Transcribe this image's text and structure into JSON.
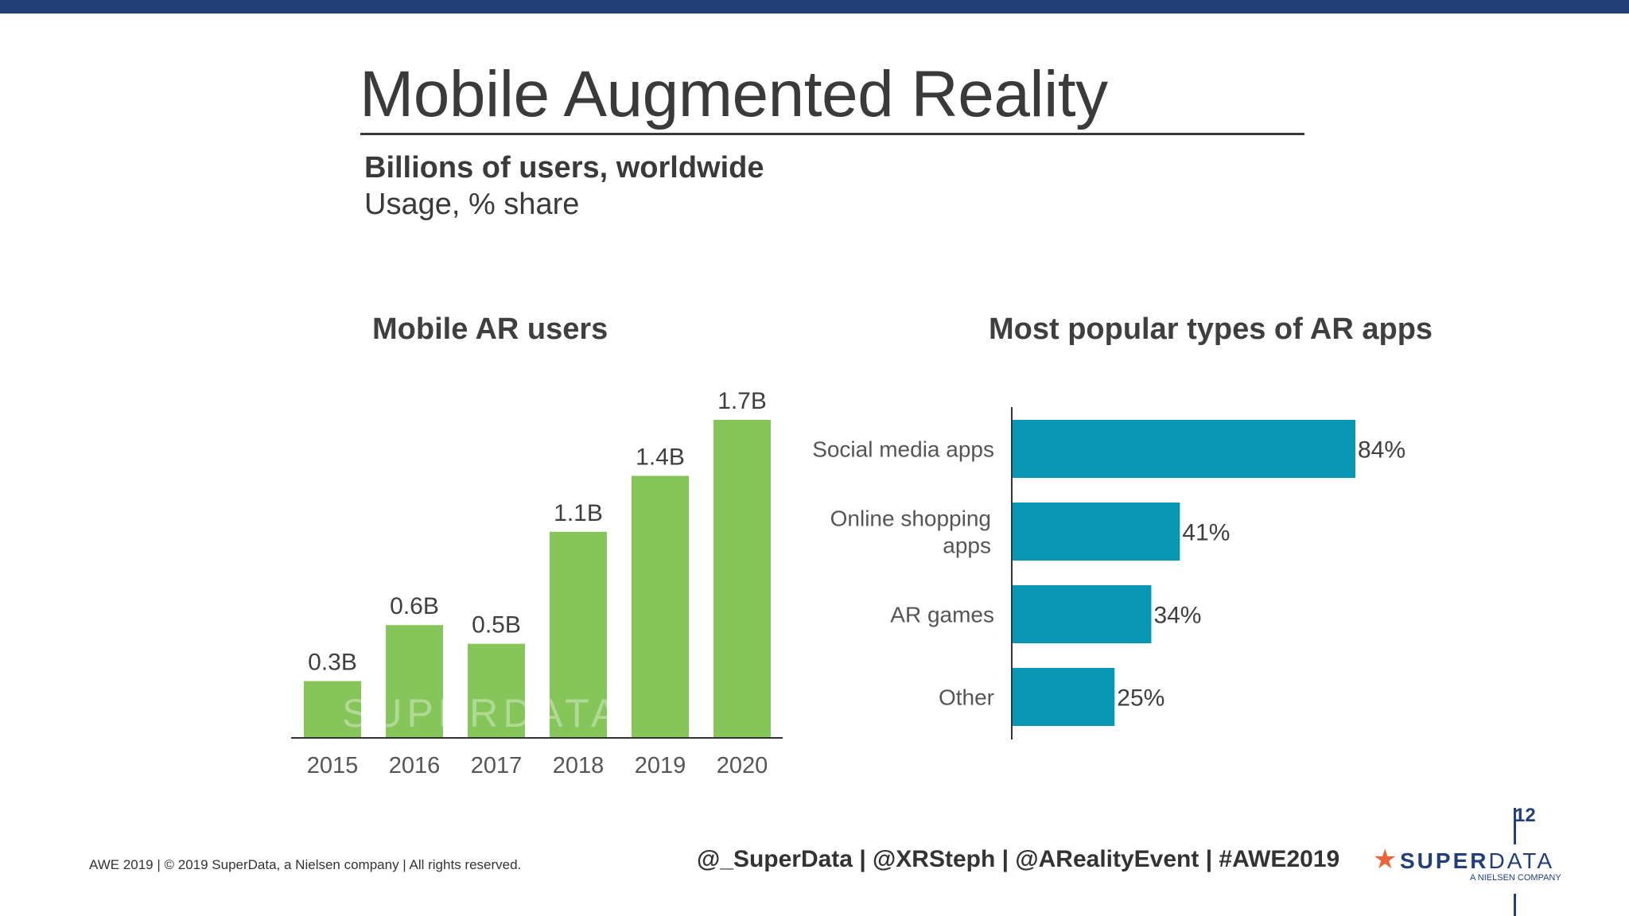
{
  "slide": {
    "title": "Mobile Augmented Reality",
    "subtitle": "Billions of users, worldwide",
    "subtitle2": "Usage, % share",
    "page_number": "12"
  },
  "footer": {
    "copyright": "AWE 2019  |  © 2019 SuperData, a Nielsen company |  All rights reserved.",
    "handles": "@_SuperData  |  @XRSteph  |  @ARealityEvent  |  #AWE2019",
    "logo_text_bold": "SUPER",
    "logo_text_light": "DATA",
    "logo_sub": "A NIELSEN COMPANY",
    "logo_icon": "star-icon"
  },
  "watermark": "SUPERDATA",
  "colors": {
    "header_bar": "#233f7a",
    "green_bars": "#86c55a",
    "teal_bars": "#0897b3",
    "logo_star": "#e8663a"
  },
  "chart_data": [
    {
      "type": "bar",
      "title": "Mobile AR users",
      "categories": [
        "2015",
        "2016",
        "2017",
        "2018",
        "2019",
        "2020"
      ],
      "values": [
        0.3,
        0.6,
        0.5,
        1.1,
        1.4,
        1.7
      ],
      "data_labels": [
        "0.3B",
        "0.6B",
        "0.5B",
        "1.1B",
        "1.4B",
        "1.7B"
      ],
      "unit": "B",
      "ylim": [
        0,
        1.7
      ]
    },
    {
      "type": "bar",
      "orientation": "horizontal",
      "title": "Most popular types of AR apps",
      "categories": [
        "Social media apps",
        "Online shopping apps",
        "AR games",
        "Other"
      ],
      "values": [
        84,
        41,
        34,
        25
      ],
      "data_labels": [
        "84%",
        "41%",
        "34%",
        "25%"
      ],
      "unit": "%",
      "xlim": [
        0,
        84
      ]
    }
  ]
}
